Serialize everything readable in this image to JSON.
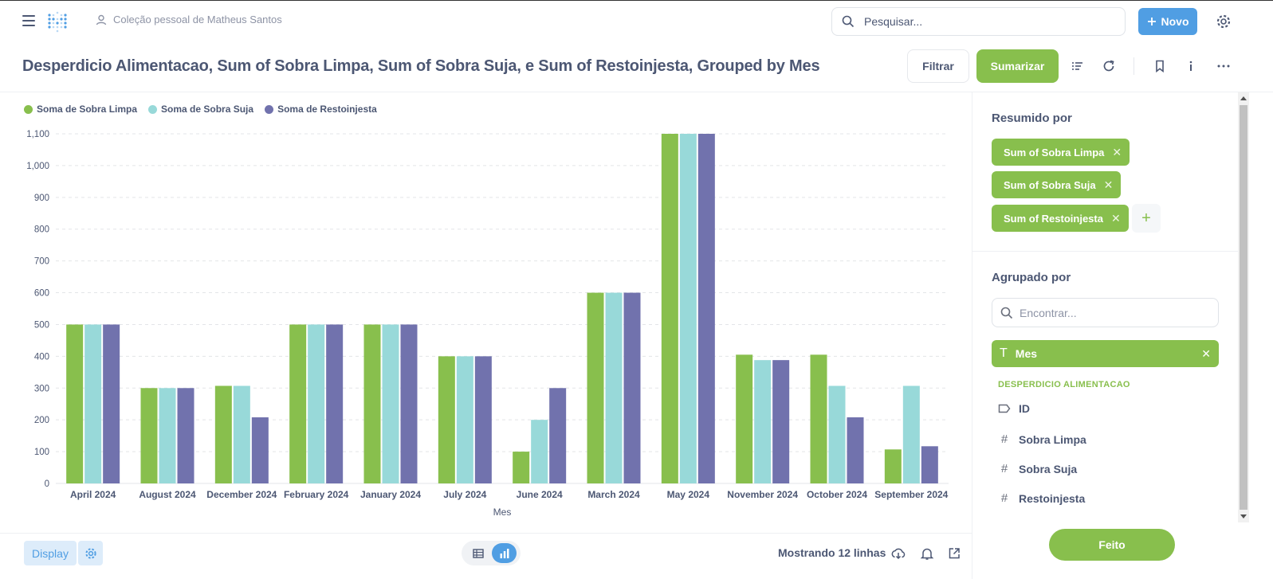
{
  "header": {
    "collection": "Coleção pessoal de Matheus Santos",
    "search_placeholder": "Pesquisar...",
    "new_label": "Novo"
  },
  "question": {
    "title": "Desperdicio Alimentacao, Sum of Sobra Limpa, Sum of Sobra Suja, e Sum of Restoinjesta, Grouped by Mes",
    "filter_label": "Filtrar",
    "summarize_label": "Sumarizar"
  },
  "colors": {
    "green": "#88bf4d",
    "teal": "#98d9d9",
    "purple": "#7172ad",
    "brand": "#509ee3"
  },
  "chart_data": {
    "type": "bar",
    "xlabel": "Mes",
    "ylabel": "",
    "ylim": [
      0,
      1100
    ],
    "yticks": [
      "0",
      "100",
      "200",
      "300",
      "400",
      "500",
      "600",
      "700",
      "800",
      "900",
      "1,000",
      "1,100"
    ],
    "grid": true,
    "legend_position": "top-left",
    "categories": [
      "April 2024",
      "August 2024",
      "December 2024",
      "February 2024",
      "January 2024",
      "July 2024",
      "June 2024",
      "March 2024",
      "May 2024",
      "November 2024",
      "October 2024",
      "September 2024"
    ],
    "series": [
      {
        "name": "Soma de Sobra Limpa",
        "color": "#88bf4d",
        "values": [
          500,
          300,
          307,
          500,
          500,
          400,
          100,
          600,
          1100,
          405,
          405,
          107
        ]
      },
      {
        "name": "Soma de Sobra Suja",
        "color": "#98d9d9",
        "values": [
          500,
          300,
          307,
          500,
          500,
          400,
          200,
          600,
          1100,
          388,
          307,
          307
        ]
      },
      {
        "name": "Soma de Restoinjesta",
        "color": "#7172ad",
        "values": [
          500,
          300,
          208,
          500,
          500,
          400,
          300,
          600,
          1100,
          388,
          208,
          117
        ]
      }
    ]
  },
  "sidebar": {
    "summarized_heading": "Resumido por",
    "metrics": [
      "Sum of Sobra Limpa",
      "Sum of Sobra Suja",
      "Sum of Restoinjesta"
    ],
    "grouped_heading": "Agrupado por",
    "find_placeholder": "Encontrar...",
    "group_field": "Mes",
    "table_name": "DESPERDICIO ALIMENTACAO",
    "fields": [
      {
        "name": "ID",
        "icon": "label-icon"
      },
      {
        "name": "Sobra Limpa",
        "icon": "hash-icon"
      },
      {
        "name": "Sobra Suja",
        "icon": "hash-icon"
      },
      {
        "name": "Restoinjesta",
        "icon": "hash-icon"
      }
    ],
    "done_label": "Feito"
  },
  "footer": {
    "display_label": "Display",
    "rows_label": "Mostrando 12 linhas"
  }
}
